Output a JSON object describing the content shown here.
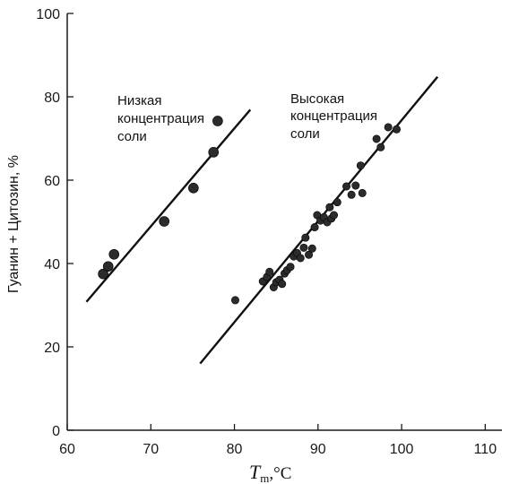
{
  "chart_data": {
    "type": "scatter",
    "xlabel": {
      "symbol": "T",
      "subscript": "m",
      "unit": ",°C"
    },
    "ylabel": "Гуанин + Цитозин, %",
    "xlim": [
      60,
      112
    ],
    "ylim": [
      0,
      100
    ],
    "x_ticks": [
      60,
      70,
      80,
      90,
      100,
      110
    ],
    "y_ticks": [
      0,
      20,
      40,
      60,
      80,
      100
    ],
    "grid": false,
    "colors": {
      "axis": "#1a1a1a",
      "points": "#2b2b2b",
      "lines": "#111111"
    },
    "series": [
      {
        "name": "Низкая концентрация соли",
        "label_lines": [
          "Низкая",
          "концентрация",
          "соли"
        ],
        "points": [
          {
            "x": 64.3,
            "y": 37.5
          },
          {
            "x": 64.9,
            "y": 39.3
          },
          {
            "x": 65.6,
            "y": 42.2
          },
          {
            "x": 71.6,
            "y": 50.1
          },
          {
            "x": 75.1,
            "y": 58.1
          },
          {
            "x": 77.5,
            "y": 66.7
          },
          {
            "x": 78.0,
            "y": 74.2
          }
        ],
        "fit_line": [
          {
            "x": 62.3,
            "y": 30.8
          },
          {
            "x": 81.9,
            "y": 76.9
          }
        ]
      },
      {
        "name": "Высокая концентрация соли",
        "label_lines": [
          "Высокая",
          "концентрация",
          "соли"
        ],
        "points": [
          {
            "x": 80.1,
            "y": 31.2
          },
          {
            "x": 83.4,
            "y": 35.7
          },
          {
            "x": 83.9,
            "y": 36.8
          },
          {
            "x": 84.2,
            "y": 38.0
          },
          {
            "x": 84.7,
            "y": 34.3
          },
          {
            "x": 85.0,
            "y": 35.5
          },
          {
            "x": 85.4,
            "y": 36.1
          },
          {
            "x": 85.7,
            "y": 35.1
          },
          {
            "x": 86.0,
            "y": 37.6
          },
          {
            "x": 86.3,
            "y": 38.4
          },
          {
            "x": 86.7,
            "y": 39.2
          },
          {
            "x": 87.1,
            "y": 41.7
          },
          {
            "x": 87.5,
            "y": 42.5
          },
          {
            "x": 87.9,
            "y": 41.3
          },
          {
            "x": 88.3,
            "y": 43.8
          },
          {
            "x": 88.5,
            "y": 46.2
          },
          {
            "x": 88.9,
            "y": 42.1
          },
          {
            "x": 89.3,
            "y": 43.6
          },
          {
            "x": 89.6,
            "y": 48.7
          },
          {
            "x": 89.9,
            "y": 51.6
          },
          {
            "x": 90.3,
            "y": 50.3
          },
          {
            "x": 90.7,
            "y": 51.1
          },
          {
            "x": 91.1,
            "y": 49.9
          },
          {
            "x": 91.4,
            "y": 53.5
          },
          {
            "x": 91.6,
            "y": 50.8
          },
          {
            "x": 91.9,
            "y": 51.6
          },
          {
            "x": 92.3,
            "y": 54.7
          },
          {
            "x": 93.4,
            "y": 58.5
          },
          {
            "x": 94.0,
            "y": 56.5
          },
          {
            "x": 94.5,
            "y": 58.7
          },
          {
            "x": 95.1,
            "y": 63.5
          },
          {
            "x": 95.3,
            "y": 56.9
          },
          {
            "x": 97.0,
            "y": 69.9
          },
          {
            "x": 97.5,
            "y": 67.9
          },
          {
            "x": 98.4,
            "y": 72.7
          },
          {
            "x": 99.4,
            "y": 72.2
          }
        ],
        "fit_line": [
          {
            "x": 75.9,
            "y": 16.0
          },
          {
            "x": 104.3,
            "y": 84.8
          }
        ]
      }
    ]
  }
}
